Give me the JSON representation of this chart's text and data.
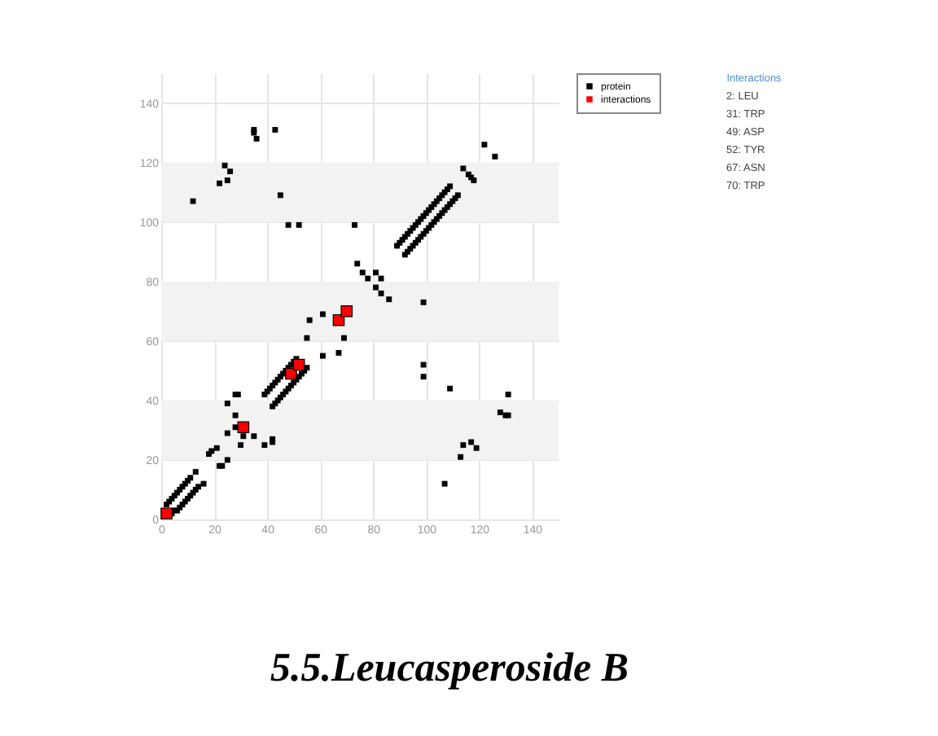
{
  "chart_data": {
    "type": "scatter",
    "title": "5.5.Leucasperoside B",
    "xlim": [
      0,
      150
    ],
    "ylim": [
      0,
      150
    ],
    "xticks": [
      0,
      20,
      40,
      60,
      80,
      100,
      120,
      140
    ],
    "yticks": [
      0,
      20,
      40,
      60,
      80,
      100,
      120,
      140
    ],
    "grid": true,
    "legend": "top right",
    "marker": "square",
    "bands": [
      {
        "axis": "y",
        "from": 20,
        "to": 40,
        "color": "#f2f2f2"
      },
      {
        "axis": "y",
        "from": 60,
        "to": 80,
        "color": "#f2f2f2"
      },
      {
        "axis": "y",
        "from": 100,
        "to": 120,
        "color": "#f2f2f2"
      }
    ],
    "annotations": [
      "Interactions",
      "2: LEU",
      "31: TRP",
      "49: ASP",
      "52: TYR",
      "67: ASN",
      "70: TRP"
    ],
    "series": [
      {
        "name": "protein",
        "color": "#000000",
        "x": [
          2,
          3,
          4,
          5,
          6,
          7,
          8,
          9,
          10,
          11,
          13,
          4,
          5,
          6,
          7,
          8,
          9,
          10,
          11,
          12,
          13,
          14,
          16,
          18,
          19,
          21,
          22,
          23,
          25,
          25,
          25,
          28,
          29,
          28,
          28,
          30,
          31,
          35,
          39,
          42,
          42,
          39,
          40,
          41,
          42,
          43,
          44,
          45,
          46,
          47,
          48,
          49,
          50,
          51,
          42,
          43,
          44,
          45,
          46,
          47,
          48,
          49,
          50,
          51,
          52,
          53,
          54,
          55,
          56,
          55,
          61,
          61,
          67,
          69,
          73,
          74,
          76,
          78,
          81,
          83,
          81,
          83,
          86,
          99,
          89,
          90,
          91,
          92,
          93,
          94,
          95,
          96,
          97,
          98,
          99,
          100,
          101,
          102,
          103,
          104,
          105,
          106,
          107,
          108,
          109,
          92,
          93,
          94,
          95,
          96,
          97,
          98,
          99,
          100,
          101,
          102,
          103,
          104,
          105,
          106,
          107,
          108,
          109,
          110,
          111,
          112,
          114,
          116,
          117,
          118,
          122,
          126,
          99,
          99,
          109,
          131,
          128,
          130,
          131,
          114,
          117,
          119,
          113,
          107,
          12,
          22,
          24,
          26,
          25,
          35,
          35,
          36,
          43,
          45,
          48,
          52
        ],
        "values": [
          5,
          6,
          7,
          8,
          9,
          10,
          11,
          12,
          13,
          14,
          16,
          2,
          3,
          3,
          4,
          5,
          6,
          7,
          8,
          9,
          10,
          11,
          12,
          22,
          23,
          24,
          18,
          18,
          20,
          29,
          39,
          42,
          42,
          35,
          31,
          25,
          28,
          28,
          25,
          27,
          26,
          42,
          43,
          44,
          45,
          46,
          47,
          48,
          49,
          50,
          51,
          52,
          53,
          54,
          38,
          39,
          40,
          41,
          42,
          43,
          44,
          45,
          46,
          47,
          48,
          49,
          50,
          51,
          67,
          61,
          69,
          55,
          56,
          61,
          99,
          86,
          83,
          81,
          83,
          81,
          78,
          76,
          74,
          73,
          92,
          93,
          94,
          95,
          96,
          97,
          98,
          99,
          100,
          101,
          102,
          103,
          104,
          105,
          106,
          107,
          108,
          109,
          110,
          111,
          112,
          89,
          90,
          91,
          92,
          93,
          94,
          95,
          96,
          97,
          98,
          99,
          100,
          101,
          102,
          103,
          104,
          105,
          106,
          107,
          108,
          109,
          118,
          116,
          115,
          114,
          126,
          122,
          52,
          48,
          44,
          42,
          36,
          35,
          35,
          25,
          26,
          24,
          21,
          12,
          107,
          113,
          119,
          117,
          114,
          131,
          130,
          128,
          131,
          109,
          99,
          99
        ]
      },
      {
        "name": "interactions",
        "color": "#ff0000",
        "x": [
          2,
          31,
          49,
          52,
          67,
          70
        ],
        "values": [
          2,
          31,
          49,
          52,
          67,
          70
        ]
      }
    ]
  }
}
